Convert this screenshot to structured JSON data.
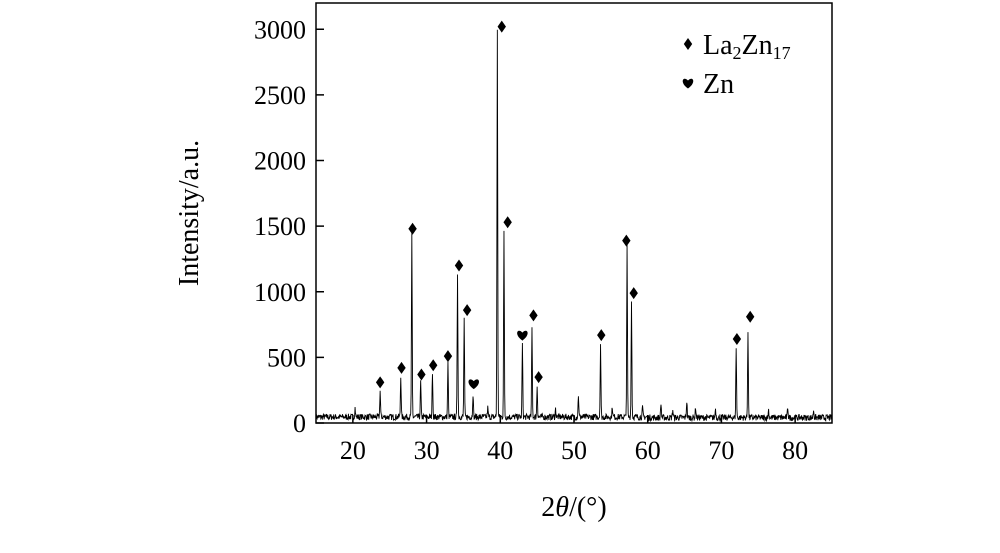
{
  "chart_data": {
    "type": "line",
    "xlabel": {
      "prefix": "2",
      "var": "θ",
      "suffix": "/(°)"
    },
    "ylabel": "Intensity/a.u.",
    "xlim": [
      15,
      85
    ],
    "ylim": [
      0,
      3200
    ],
    "x_ticks": [
      20,
      30,
      40,
      50,
      60,
      70,
      80
    ],
    "y_ticks": [
      0,
      500,
      1000,
      1500,
      2000,
      2500,
      3000
    ],
    "grid": false,
    "legend_position": "top-right",
    "legend": [
      {
        "symbol": "diamond",
        "base": "La",
        "sub1": "2",
        "mid": "Zn",
        "sub2": "17"
      },
      {
        "symbol": "heart",
        "base": "Zn",
        "sub1": "",
        "mid": "",
        "sub2": ""
      }
    ],
    "peaks": [
      {
        "x": 23.7,
        "y": 200,
        "phase": "La2Zn17"
      },
      {
        "x": 26.5,
        "y": 320,
        "phase": "La2Zn17"
      },
      {
        "x": 28.0,
        "y": 1380,
        "phase": "La2Zn17"
      },
      {
        "x": 29.2,
        "y": 270,
        "phase": "La2Zn17"
      },
      {
        "x": 30.8,
        "y": 350,
        "phase": "La2Zn17"
      },
      {
        "x": 32.9,
        "y": 410,
        "phase": "La2Zn17"
      },
      {
        "x": 34.2,
        "y": 1100,
        "phase": "La2Zn17"
      },
      {
        "x": 35.1,
        "y": 750,
        "phase": "La2Zn17"
      },
      {
        "x": 36.3,
        "y": 180,
        "phase": "Zn"
      },
      {
        "x": 39.6,
        "y": 2940,
        "phase": "La2Zn17"
      },
      {
        "x": 40.5,
        "y": 1400,
        "phase": "La2Zn17"
      },
      {
        "x": 43.0,
        "y": 560,
        "phase": "Zn"
      },
      {
        "x": 44.3,
        "y": 680,
        "phase": "La2Zn17"
      },
      {
        "x": 45.0,
        "y": 240,
        "phase": "La2Zn17"
      },
      {
        "x": 53.6,
        "y": 560,
        "phase": "La2Zn17"
      },
      {
        "x": 57.2,
        "y": 1300,
        "phase": "La2Zn17"
      },
      {
        "x": 57.8,
        "y": 880,
        "phase": "La2Zn17"
      },
      {
        "x": 72.0,
        "y": 540,
        "phase": "La2Zn17"
      },
      {
        "x": 73.6,
        "y": 670,
        "phase": "La2Zn17"
      }
    ],
    "minor_peaks": [
      {
        "x": 20.3,
        "y": 70
      },
      {
        "x": 38.3,
        "y": 70
      },
      {
        "x": 47.5,
        "y": 60
      },
      {
        "x": 50.6,
        "y": 170
      },
      {
        "x": 55.2,
        "y": 80
      },
      {
        "x": 59.3,
        "y": 70
      },
      {
        "x": 61.8,
        "y": 110
      },
      {
        "x": 63.4,
        "y": 60
      },
      {
        "x": 65.3,
        "y": 130
      },
      {
        "x": 66.5,
        "y": 80
      },
      {
        "x": 69.2,
        "y": 70
      },
      {
        "x": 76.4,
        "y": 60
      },
      {
        "x": 79.0,
        "y": 80
      },
      {
        "x": 82.5,
        "y": 60
      }
    ],
    "markers": [
      {
        "x": 23.7,
        "y": 310,
        "symbol": "diamond"
      },
      {
        "x": 26.6,
        "y": 420,
        "symbol": "diamond"
      },
      {
        "x": 28.1,
        "y": 1480,
        "symbol": "diamond"
      },
      {
        "x": 29.3,
        "y": 370,
        "symbol": "diamond"
      },
      {
        "x": 30.9,
        "y": 440,
        "symbol": "diamond"
      },
      {
        "x": 32.9,
        "y": 510,
        "symbol": "diamond"
      },
      {
        "x": 34.4,
        "y": 1200,
        "symbol": "diamond"
      },
      {
        "x": 35.5,
        "y": 860,
        "symbol": "diamond"
      },
      {
        "x": 36.4,
        "y": 300,
        "symbol": "heart"
      },
      {
        "x": 40.2,
        "y": 3020,
        "symbol": "diamond"
      },
      {
        "x": 41.0,
        "y": 1530,
        "symbol": "diamond"
      },
      {
        "x": 43.0,
        "y": 670,
        "symbol": "heart"
      },
      {
        "x": 44.5,
        "y": 820,
        "symbol": "diamond"
      },
      {
        "x": 45.2,
        "y": 350,
        "symbol": "diamond"
      },
      {
        "x": 53.7,
        "y": 670,
        "symbol": "diamond"
      },
      {
        "x": 57.1,
        "y": 1390,
        "symbol": "diamond"
      },
      {
        "x": 58.1,
        "y": 990,
        "symbol": "diamond"
      },
      {
        "x": 72.1,
        "y": 640,
        "symbol": "diamond"
      },
      {
        "x": 73.9,
        "y": 810,
        "symbol": "diamond"
      }
    ]
  }
}
